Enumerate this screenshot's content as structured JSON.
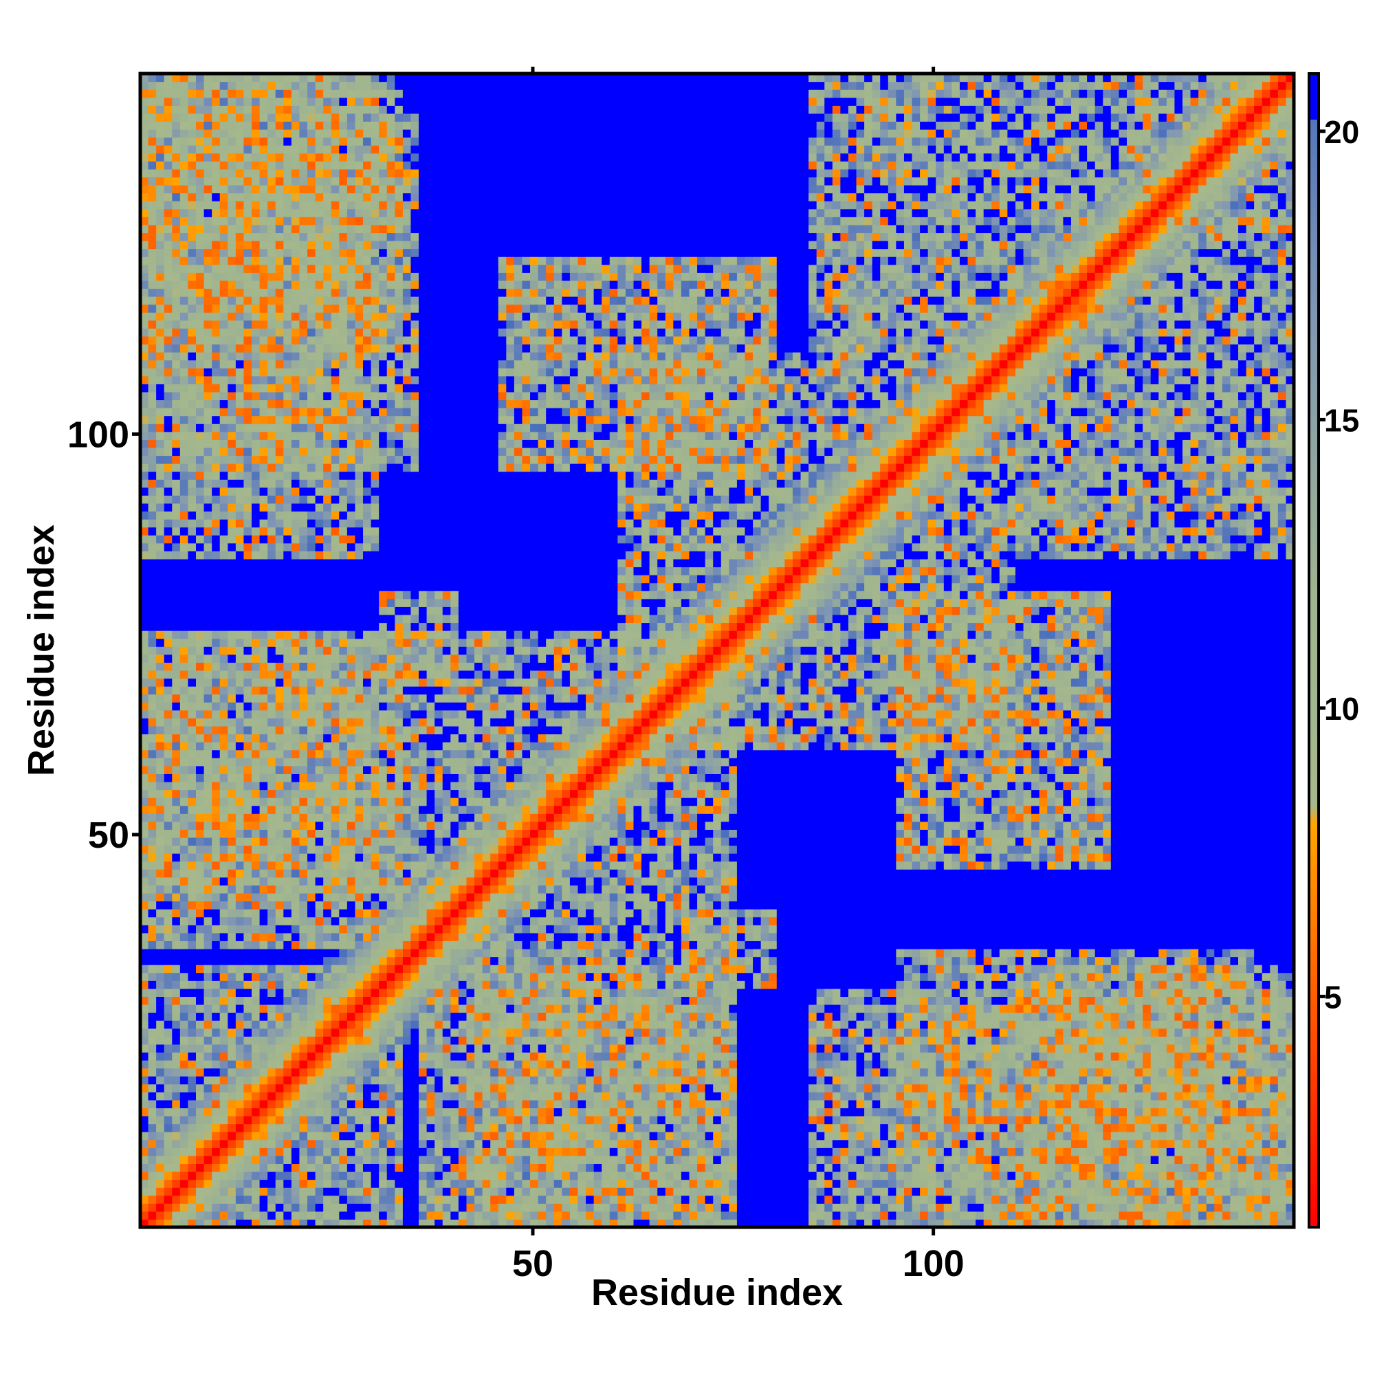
{
  "chart_data": {
    "type": "heatmap",
    "title": "",
    "xlabel": "Residue index",
    "ylabel": "Residue index",
    "n_residues": 145,
    "xlim": [
      1,
      145
    ],
    "ylim": [
      1,
      145
    ],
    "x_ticks": [
      50,
      100
    ],
    "y_ticks": [
      50,
      100
    ],
    "colorbar": {
      "ticks": [
        5,
        10,
        15,
        20
      ],
      "range": [
        1,
        21
      ],
      "stops": [
        {
          "value": 1,
          "color": "#ff0000"
        },
        {
          "value": 4,
          "color": "#ff4500"
        },
        {
          "value": 8,
          "color": "#ffa500"
        },
        {
          "value": 8.3,
          "color": "#a7b88c"
        },
        {
          "value": 12,
          "color": "#9fb490"
        },
        {
          "value": 17,
          "color": "#7f95b4"
        },
        {
          "value": 21,
          "color": "#4a6fbc"
        }
      ],
      "cap_value": 21,
      "cap_color": "#0000ff"
    },
    "grid": false,
    "legend": "right colorbar",
    "matrix_description": "symmetric distance map; value = distance in Angstrom, capped at 21",
    "contact_blocks": [
      {
        "i": [
          0,
          33
        ],
        "j": [
          0,
          33
        ],
        "strength": 1.0
      },
      {
        "i": [
          0,
          33
        ],
        "j": [
          42,
          75
        ],
        "strength": 0.9
      },
      {
        "i": [
          0,
          33
        ],
        "j": [
          110,
          145
        ],
        "strength": 0.9
      },
      {
        "i": [
          30,
          75
        ],
        "j": [
          30,
          75
        ],
        "strength": 1.0
      },
      {
        "i": [
          45,
          80
        ],
        "j": [
          95,
          122
        ],
        "strength": 0.6
      },
      {
        "i": [
          60,
          110
        ],
        "j": [
          60,
          110
        ],
        "strength": 0.9
      },
      {
        "i": [
          68,
          80
        ],
        "j": [
          30,
          40
        ],
        "strength": 0.9
      },
      {
        "i": [
          84,
          145
        ],
        "j": [
          110,
          145
        ],
        "strength": 1.0
      },
      {
        "i": [
          0,
          30
        ],
        "j": [
          84,
          145
        ],
        "strength": 0.9
      },
      {
        "i": [
          35,
          75
        ],
        "j": [
          0,
          30
        ],
        "strength": 0.8
      },
      {
        "i": [
          95,
          140
        ],
        "j": [
          0,
          35
        ],
        "strength": 0.85
      }
    ]
  }
}
